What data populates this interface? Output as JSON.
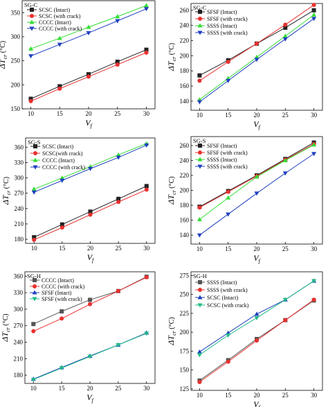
{
  "chart_data": [
    {
      "type": "line",
      "panel_title": "SG-C",
      "xlabel": "V_f",
      "ylabel": "ΔT_cr (°C)",
      "x": [
        10,
        15,
        20,
        25,
        30
      ],
      "xlim": [
        8.5,
        31.5
      ],
      "xticks": [
        10,
        15,
        20,
        25,
        30
      ],
      "ylim": [
        150,
        375
      ],
      "yticks": [
        150,
        200,
        250,
        300,
        350
      ],
      "legend_position": "top-left",
      "series": [
        {
          "name": "SCSC (Intact)",
          "color": "#222222",
          "marker": "square",
          "values": [
            171,
            197,
            222,
            248,
            273
          ]
        },
        {
          "name": "SCSC (with crack)",
          "color": "#e8312f",
          "marker": "circle",
          "values": [
            166,
            192,
            217,
            242,
            267
          ]
        },
        {
          "name": "CCCC (Intact)",
          "color": "#33dd33",
          "marker": "triangle",
          "values": [
            275,
            297,
            320,
            342,
            365
          ]
        },
        {
          "name": "CCCC (with crack)",
          "color": "#1f3fbf",
          "marker": "tri-down",
          "values": [
            260,
            284,
            308,
            333,
            358
          ]
        }
      ]
    },
    {
      "type": "line",
      "panel_title": "SG-C",
      "xlabel": "V_f",
      "ylabel": "ΔT_cr (°C)",
      "x": [
        10,
        15,
        20,
        25,
        30
      ],
      "xlim": [
        8.5,
        31.5
      ],
      "xticks": [
        10,
        15,
        20,
        25,
        30
      ],
      "ylim": [
        128,
        269
      ],
      "yticks": [
        140,
        160,
        180,
        200,
        220,
        240,
        260
      ],
      "legend_position": "top-left",
      "series": [
        {
          "name": "SFSF (Intact)",
          "color": "#222222",
          "marker": "square",
          "values": [
            174,
            194,
            216,
            237,
            260
          ]
        },
        {
          "name": "SFSF (with crack)",
          "color": "#e8312f",
          "marker": "circle",
          "values": [
            167,
            192,
            216,
            241,
            267
          ]
        },
        {
          "name": "SSSS (Intact)",
          "color": "#33dd33",
          "marker": "triangle",
          "values": [
            142,
            170,
            198,
            226,
            254
          ]
        },
        {
          "name": "SSSS (with crack)",
          "color": "#1f3fbf",
          "marker": "tri-down",
          "values": [
            139,
            167,
            195,
            222,
            249
          ]
        }
      ]
    },
    {
      "type": "line",
      "panel_title": "SG-S",
      "xlabel": "V_f",
      "ylabel": "ΔT_cr (°C)",
      "x": [
        10,
        15,
        20,
        25,
        30
      ],
      "xlim": [
        8.5,
        31.5
      ],
      "xticks": [
        10,
        15,
        20,
        25,
        30
      ],
      "ylim": [
        172,
        378
      ],
      "yticks": [
        180,
        210,
        240,
        270,
        300,
        330,
        360
      ],
      "legend_position": "top-left",
      "series": [
        {
          "name": "SCSC (Intact)",
          "color": "#222222",
          "marker": "square",
          "values": [
            184,
            209,
            234,
            259,
            284
          ]
        },
        {
          "name": "SCSC(with crack)",
          "color": "#e8312f",
          "marker": "circle",
          "values": [
            179,
            203,
            228,
            253,
            277
          ]
        },
        {
          "name": "CCCC (Intact)",
          "color": "#33dd33",
          "marker": "triangle",
          "values": [
            278,
            300,
            322,
            345,
            367
          ]
        },
        {
          "name": "CCCC (with crack)",
          "color": "#1f3fbf",
          "marker": "tri-down",
          "values": [
            272,
            295,
            318,
            340,
            364
          ]
        }
      ]
    },
    {
      "type": "line",
      "panel_title": "SG-S",
      "xlabel": "V_f",
      "ylabel": "ΔT_cr (°C)",
      "x": [
        10,
        15,
        20,
        25,
        30
      ],
      "xlim": [
        8.5,
        31.5
      ],
      "xticks": [
        10,
        15,
        20,
        25,
        30
      ],
      "ylim": [
        128,
        272
      ],
      "yticks": [
        140,
        160,
        180,
        200,
        220,
        240,
        260
      ],
      "legend_position": "top-left",
      "series": [
        {
          "name": "SFSF (Intact)",
          "color": "#222222",
          "marker": "square",
          "values": [
            178,
            199,
            220,
            242,
            264
          ]
        },
        {
          "name": "SFSF (with crack)",
          "color": "#e8312f",
          "marker": "circle",
          "values": [
            177,
            198,
            219,
            241,
            262
          ]
        },
        {
          "name": "SSSS (Intact)",
          "color": "#33dd33",
          "marker": "triangle",
          "values": [
            161,
            190,
            218,
            240,
            261
          ]
        },
        {
          "name": "SSSS (with crack)",
          "color": "#1f3fbf",
          "marker": "tri-down",
          "values": [
            140,
            168,
            196,
            223,
            249
          ]
        }
      ]
    },
    {
      "type": "line",
      "panel_title": "SG-H",
      "xlabel": "V_f",
      "ylabel": "ΔT_cr (°C)",
      "x": [
        10,
        15,
        20,
        25,
        30
      ],
      "xlim": [
        8.5,
        31.5
      ],
      "xticks": [
        10,
        15,
        20,
        25,
        30
      ],
      "ylim": [
        165,
        368
      ],
      "yticks": [
        180,
        210,
        240,
        270,
        300,
        330,
        360
      ],
      "legend_position": "top-left",
      "series": [
        {
          "name": "CCCC (Intact)",
          "color": "#555555",
          "marker": "square",
          "values": [
            273,
            296,
            317,
            333,
            359
          ]
        },
        {
          "name": "CCCC (with crack)",
          "color": "#e8312f",
          "marker": "circle",
          "values": [
            260,
            283,
            309,
            333,
            358
          ]
        },
        {
          "name": "SFSF (Intact)",
          "color": "#1f3fbf",
          "marker": "triangle",
          "values": [
            173,
            194,
            215,
            235,
            257
          ]
        },
        {
          "name": "SFSF (with crack)",
          "color": "#22bb88",
          "marker": "tri-down",
          "values": [
            172,
            193,
            214,
            235,
            256
          ]
        }
      ]
    },
    {
      "type": "line",
      "panel_title": "SG-H",
      "xlabel": "V_f",
      "ylabel": "ΔT_cr (°C)",
      "x": [
        10,
        15,
        20,
        25,
        30
      ],
      "xlim": [
        8.5,
        31.5
      ],
      "xticks": [
        10,
        15,
        20,
        25,
        30
      ],
      "ylim": [
        123,
        280
      ],
      "yticks": [
        125,
        150,
        175,
        200,
        225,
        250,
        275
      ],
      "legend_position": "top-left",
      "series": [
        {
          "name": "SSSS (Intact)",
          "color": "#555555",
          "marker": "square",
          "values": [
            136,
            163,
            191,
            216,
            242
          ]
        },
        {
          "name": "SSSS (with crack)",
          "color": "#e8312f",
          "marker": "circle",
          "values": [
            134,
            161,
            189,
            216,
            243
          ]
        },
        {
          "name": "SCSC (Intact)",
          "color": "#1f3fbf",
          "marker": "triangle",
          "values": [
            174,
            199,
            224,
            243,
            268
          ]
        },
        {
          "name": "SCSC (with crack)",
          "color": "#22bb88",
          "marker": "tri-down",
          "values": [
            170,
            196,
            219,
            243,
            268
          ]
        }
      ]
    }
  ]
}
